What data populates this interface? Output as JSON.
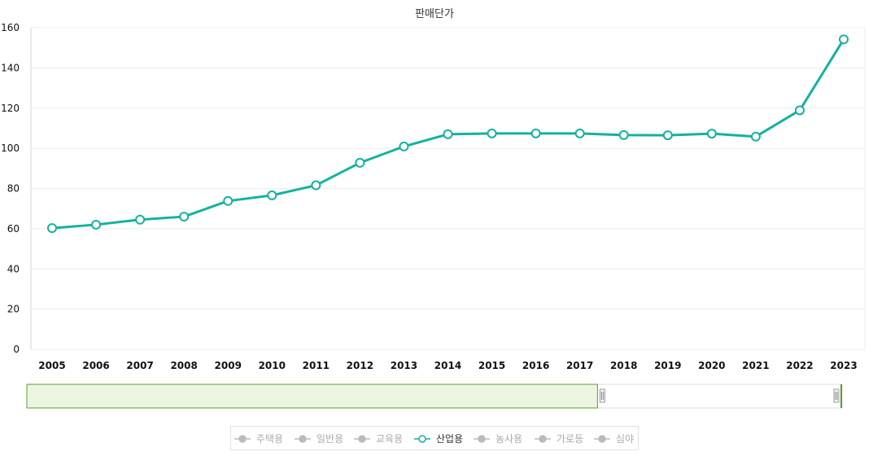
{
  "chart_data": {
    "type": "line",
    "title": "판매단가",
    "xlabel": "",
    "ylabel": "",
    "ylim": [
      0,
      160
    ],
    "yticks": [
      0,
      20,
      40,
      60,
      80,
      100,
      120,
      140,
      160
    ],
    "categories": [
      "2005",
      "2006",
      "2007",
      "2008",
      "2009",
      "2010",
      "2011",
      "2012",
      "2013",
      "2014",
      "2015",
      "2016",
      "2017",
      "2018",
      "2019",
      "2020",
      "2021",
      "2022",
      "2023"
    ],
    "series": [
      {
        "name": "산업용",
        "color": "#14b1a1",
        "values": [
          60.3,
          62.0,
          64.5,
          66.0,
          73.8,
          76.6,
          81.6,
          92.8,
          100.9,
          107.0,
          107.4,
          107.4,
          107.4,
          106.6,
          106.5,
          107.3,
          105.8,
          118.9,
          154.2
        ]
      }
    ],
    "grid": true,
    "legend_position": "bottom"
  },
  "legend": {
    "items": [
      {
        "label": "주택용",
        "active": false
      },
      {
        "label": "일반용",
        "active": false
      },
      {
        "label": "교육용",
        "active": false
      },
      {
        "label": "산업용",
        "active": true
      },
      {
        "label": "농사용",
        "active": false
      },
      {
        "label": "가로등",
        "active": false
      },
      {
        "label": "심야",
        "active": false
      }
    ]
  },
  "navigator": {
    "selected_range": [
      0,
      0.7
    ]
  },
  "colors": {
    "active_series": "#14b1a1",
    "inactive_legend": "#bbbbbb",
    "navigator_fill": "#ebf5e1",
    "navigator_border": "#5aa02c"
  }
}
